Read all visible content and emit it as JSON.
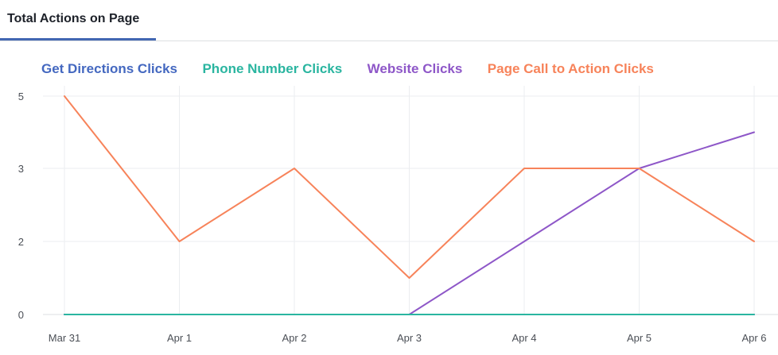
{
  "header": {
    "tab_label": "Total Actions on Page"
  },
  "colors": {
    "tab_underline": "#4267b2",
    "grid": "#ebedf0",
    "axis": "#dddfe2",
    "series": [
      "#4468c0",
      "#2ab5a0",
      "#8e57c8",
      "#f7835a"
    ]
  },
  "chart_data": {
    "type": "line",
    "title": "",
    "xlabel": "",
    "ylabel": "",
    "categories": [
      "Mar 31",
      "Apr 1",
      "Apr 2",
      "Apr 3",
      "Apr 4",
      "Apr 5",
      "Apr 6"
    ],
    "y_ticks": [
      "0",
      "2",
      "3",
      "5"
    ],
    "y_tick_values": [
      0,
      2,
      3,
      5
    ],
    "ylim": [
      0,
      5
    ],
    "grid": true,
    "legend_position": "top-left",
    "series": [
      {
        "name": "Get Directions Clicks",
        "color": "#4468c0",
        "values": [
          0,
          0,
          0,
          0,
          0,
          0,
          0
        ]
      },
      {
        "name": "Phone Number Clicks",
        "color": "#2ab5a0",
        "values": [
          0,
          0,
          0,
          0,
          0,
          0,
          0
        ]
      },
      {
        "name": "Website Clicks",
        "color": "#8e57c8",
        "values": [
          0,
          0,
          0,
          0,
          2,
          3,
          4
        ]
      },
      {
        "name": "Page Call to Action Clicks",
        "color": "#f7835a",
        "values": [
          5,
          2,
          3,
          1,
          3,
          3,
          2
        ]
      }
    ]
  }
}
